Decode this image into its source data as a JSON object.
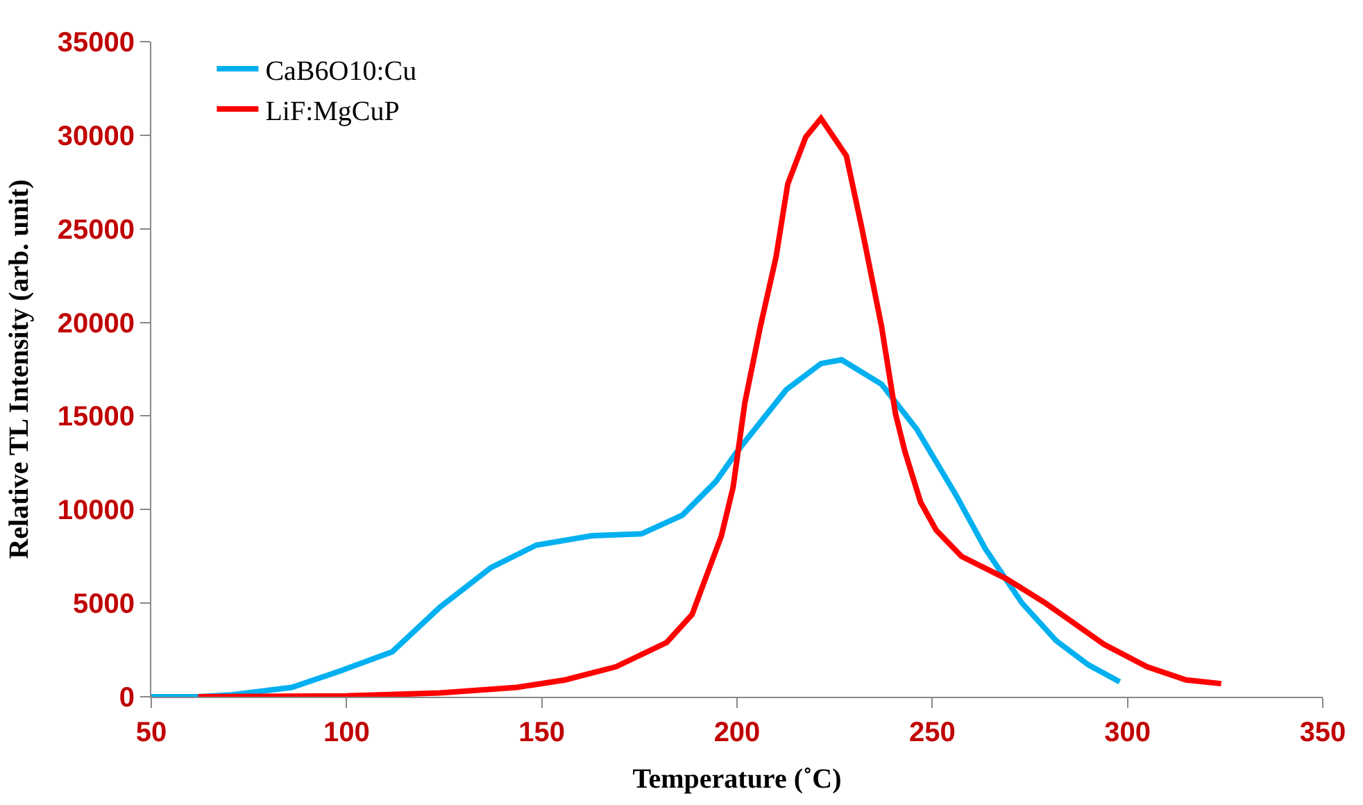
{
  "chart_data": {
    "type": "line",
    "xlabel": "Temperature (˚C)",
    "ylabel": "Relative TL Intensity (arb. unit)",
    "xlim": [
      50,
      350
    ],
    "xticks": [
      50,
      100,
      150,
      200,
      250,
      300,
      350
    ],
    "ylim": [
      0,
      35000
    ],
    "yticks": [
      0,
      5000,
      10000,
      15000,
      20000,
      25000,
      30000,
      35000
    ],
    "legend": "top left",
    "marker": "none",
    "line_style": "solid",
    "series": [
      {
        "name": "CaB6O10:Cu",
        "color": "#00b0f0",
        "x": [
          50,
          62,
          70.7,
          86,
          98.7,
          111.7,
          124,
          137,
          148.6,
          162.8,
          175.5,
          186,
          194.6,
          200,
          212.6,
          221.5,
          226.8,
          237,
          246,
          256,
          263.6,
          273,
          281.7,
          290,
          298
        ],
        "values": [
          0,
          0,
          100,
          500,
          1400,
          2400,
          4800,
          6900,
          8100,
          8600,
          8700,
          9700,
          11500,
          13100,
          16400,
          17800,
          18000,
          16700,
          14300,
          10800,
          7900,
          5000,
          3000,
          1700,
          800
        ]
      },
      {
        "name": "LiF:MgCuP",
        "color": "#ff0000",
        "x": [
          62,
          100,
          124,
          143.6,
          156,
          169,
          182,
          188.5,
          196,
          199,
          202,
          206,
          210,
          213,
          217.6,
          221.5,
          228,
          232,
          234.5,
          237,
          240.6,
          243,
          247,
          251,
          257.5,
          269,
          279,
          294,
          305,
          315,
          324
        ],
        "values": [
          0,
          50,
          200,
          500,
          900,
          1600,
          2900,
          4400,
          8600,
          11200,
          15700,
          19800,
          23500,
          27400,
          29900,
          30900,
          28900,
          25000,
          22400,
          19800,
          15100,
          13100,
          10400,
          8900,
          7500,
          6300,
          5000,
          2800,
          1600,
          900,
          700
        ]
      }
    ]
  }
}
